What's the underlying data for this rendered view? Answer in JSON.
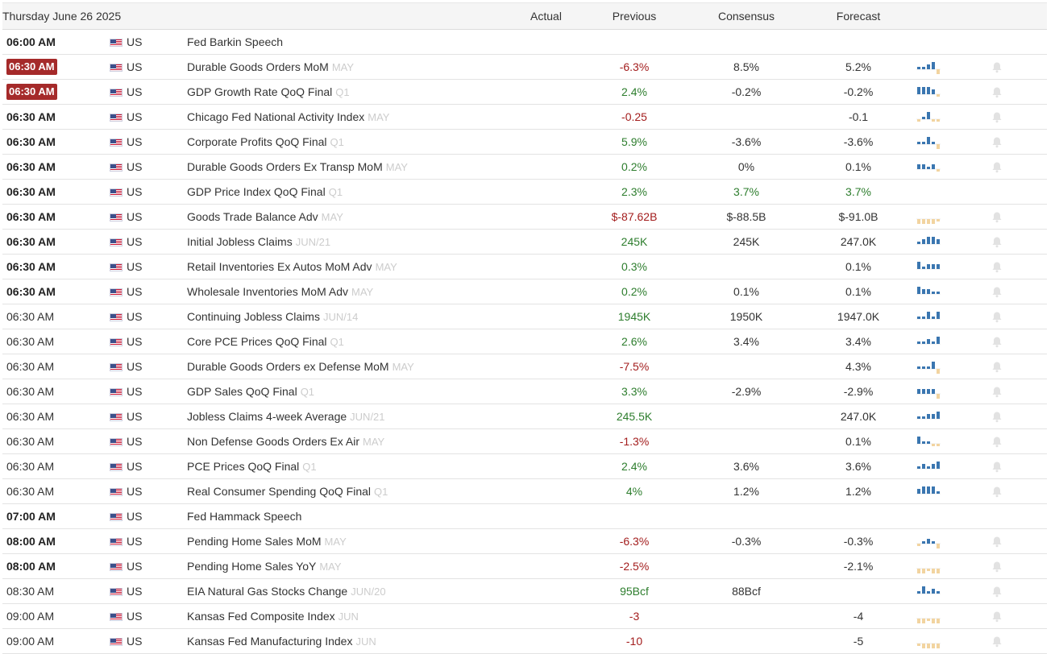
{
  "header": {
    "date": "Thursday June 26 2025",
    "col_actual": "Actual",
    "col_previous": "Previous",
    "col_consensus": "Consensus",
    "col_forecast": "Forecast"
  },
  "colors": {
    "positive": "#2d7d2d",
    "negative": "#a31d1d",
    "badge": "#a52a2a",
    "bar_blue": "#3a76b0",
    "bar_tan": "#f2d4a0"
  },
  "events": [
    {
      "time": "06:00 AM",
      "style": "bold",
      "country": "US",
      "name": "Fed Barkin Speech",
      "ref": "",
      "actual": "",
      "previous": "",
      "previous_tone": "neu",
      "consensus": "",
      "consensus_tone": "neu",
      "forecast": "",
      "forecast_tone": "neu",
      "chart": null,
      "bell": false
    },
    {
      "time": "06:30 AM",
      "style": "badge",
      "country": "US",
      "name": "Durable Goods Orders MoM",
      "ref": "MAY",
      "actual": "",
      "previous": "-6.3%",
      "previous_tone": "neg",
      "consensus": "8.5%",
      "consensus_tone": "neu",
      "forecast": "5.2%",
      "forecast_tone": "neu",
      "chart": {
        "values": [
          1,
          1,
          2,
          3,
          -2
        ],
        "tone": "blue"
      },
      "bell": true
    },
    {
      "time": "06:30 AM",
      "style": "badge",
      "country": "US",
      "name": "GDP Growth Rate QoQ Final",
      "ref": "Q1",
      "actual": "",
      "previous": "2.4%",
      "previous_tone": "pos",
      "consensus": "-0.2%",
      "consensus_tone": "neu",
      "forecast": "-0.2%",
      "forecast_tone": "neu",
      "chart": {
        "values": [
          3,
          3,
          3,
          2,
          -1
        ],
        "tone": "blue"
      },
      "bell": true
    },
    {
      "time": "06:30 AM",
      "style": "bold",
      "country": "US",
      "name": "Chicago Fed National Activity Index",
      "ref": "MAY",
      "actual": "",
      "previous": "-0.25",
      "previous_tone": "neg",
      "consensus": "",
      "consensus_tone": "neu",
      "forecast": "-0.1",
      "forecast_tone": "neu",
      "chart": {
        "values": [
          -1,
          1,
          3,
          -1,
          -1
        ],
        "tone": "blue"
      },
      "bell": true
    },
    {
      "time": "06:30 AM",
      "style": "bold",
      "country": "US",
      "name": "Corporate Profits QoQ Final",
      "ref": "Q1",
      "actual": "",
      "previous": "5.9%",
      "previous_tone": "pos",
      "consensus": "-3.6%",
      "consensus_tone": "neu",
      "forecast": "-3.6%",
      "forecast_tone": "neu",
      "chart": {
        "values": [
          1,
          1,
          3,
          1,
          -2
        ],
        "tone": "blue"
      },
      "bell": true
    },
    {
      "time": "06:30 AM",
      "style": "bold",
      "country": "US",
      "name": "Durable Goods Orders Ex Transp MoM",
      "ref": "MAY",
      "actual": "",
      "previous": "0.2%",
      "previous_tone": "pos",
      "consensus": "0%",
      "consensus_tone": "neu",
      "forecast": "0.1%",
      "forecast_tone": "neu",
      "chart": {
        "values": [
          2,
          2,
          1,
          2,
          -1
        ],
        "tone": "blue"
      },
      "bell": true
    },
    {
      "time": "06:30 AM",
      "style": "bold",
      "country": "US",
      "name": "GDP Price Index QoQ Final",
      "ref": "Q1",
      "actual": "",
      "previous": "2.3%",
      "previous_tone": "pos",
      "consensus": "3.7%",
      "consensus_tone": "pos",
      "forecast": "3.7%",
      "forecast_tone": "pos",
      "chart": null,
      "bell": false
    },
    {
      "time": "06:30 AM",
      "style": "bold",
      "country": "US",
      "name": "Goods Trade Balance Adv",
      "ref": "MAY",
      "actual": "",
      "previous": "$-87.62B",
      "previous_tone": "neg",
      "consensus": "$-88.5B",
      "consensus_tone": "neu",
      "forecast": "$-91.0B",
      "forecast_tone": "neu",
      "chart": {
        "values": [
          -3,
          -3,
          -3,
          -2,
          -1
        ],
        "tone": "tan"
      },
      "bell": true
    },
    {
      "time": "06:30 AM",
      "style": "bold",
      "country": "US",
      "name": "Initial Jobless Claims",
      "ref": "JUN/21",
      "actual": "",
      "previous": "245K",
      "previous_tone": "pos",
      "consensus": "245K",
      "consensus_tone": "neu",
      "forecast": "247.0K",
      "forecast_tone": "neu",
      "chart": {
        "values": [
          1,
          2,
          3,
          3,
          2
        ],
        "tone": "blue"
      },
      "bell": true
    },
    {
      "time": "06:30 AM",
      "style": "bold",
      "country": "US",
      "name": "Retail Inventories Ex Autos MoM Adv",
      "ref": "MAY",
      "actual": "",
      "previous": "0.3%",
      "previous_tone": "pos",
      "consensus": "",
      "consensus_tone": "neu",
      "forecast": "0.1%",
      "forecast_tone": "neu",
      "chart": {
        "values": [
          3,
          1,
          2,
          2,
          2
        ],
        "tone": "blue"
      },
      "bell": true
    },
    {
      "time": "06:30 AM",
      "style": "bold",
      "country": "US",
      "name": "Wholesale Inventories MoM Adv",
      "ref": "MAY",
      "actual": "",
      "previous": "0.2%",
      "previous_tone": "pos",
      "consensus": "0.1%",
      "consensus_tone": "neu",
      "forecast": "0.1%",
      "forecast_tone": "neu",
      "chart": {
        "values": [
          3,
          2,
          2,
          1,
          1
        ],
        "tone": "blue"
      },
      "bell": true
    },
    {
      "time": "06:30 AM",
      "style": "normal",
      "country": "US",
      "name": "Continuing Jobless Claims",
      "ref": "JUN/14",
      "actual": "",
      "previous": "1945K",
      "previous_tone": "pos",
      "consensus": "1950K",
      "consensus_tone": "neu",
      "forecast": "1947.0K",
      "forecast_tone": "neu",
      "chart": {
        "values": [
          1,
          1,
          3,
          1,
          3
        ],
        "tone": "blue"
      },
      "bell": true
    },
    {
      "time": "06:30 AM",
      "style": "normal",
      "country": "US",
      "name": "Core PCE Prices QoQ Final",
      "ref": "Q1",
      "actual": "",
      "previous": "2.6%",
      "previous_tone": "pos",
      "consensus": "3.4%",
      "consensus_tone": "neu",
      "forecast": "3.4%",
      "forecast_tone": "neu",
      "chart": {
        "values": [
          1,
          1,
          2,
          1,
          3
        ],
        "tone": "blue"
      },
      "bell": true
    },
    {
      "time": "06:30 AM",
      "style": "normal",
      "country": "US",
      "name": "Durable Goods Orders ex Defense MoM",
      "ref": "MAY",
      "actual": "",
      "previous": "-7.5%",
      "previous_tone": "neg",
      "consensus": "",
      "consensus_tone": "neu",
      "forecast": "4.3%",
      "forecast_tone": "neu",
      "chart": {
        "values": [
          1,
          1,
          1,
          3,
          -3
        ],
        "tone": "blue"
      },
      "bell": true
    },
    {
      "time": "06:30 AM",
      "style": "normal",
      "country": "US",
      "name": "GDP Sales QoQ Final",
      "ref": "Q1",
      "actual": "",
      "previous": "3.3%",
      "previous_tone": "pos",
      "consensus": "-2.9%",
      "consensus_tone": "neu",
      "forecast": "-2.9%",
      "forecast_tone": "neu",
      "chart": {
        "values": [
          2,
          2,
          2,
          2,
          -2
        ],
        "tone": "blue"
      },
      "bell": true
    },
    {
      "time": "06:30 AM",
      "style": "normal",
      "country": "US",
      "name": "Jobless Claims 4-week Average",
      "ref": "JUN/21",
      "actual": "",
      "previous": "245.5K",
      "previous_tone": "pos",
      "consensus": "",
      "consensus_tone": "neu",
      "forecast": "247.0K",
      "forecast_tone": "neu",
      "chart": {
        "values": [
          1,
          1,
          2,
          2,
          3
        ],
        "tone": "blue"
      },
      "bell": true
    },
    {
      "time": "06:30 AM",
      "style": "normal",
      "country": "US",
      "name": "Non Defense Goods Orders Ex Air",
      "ref": "MAY",
      "actual": "",
      "previous": "-1.3%",
      "previous_tone": "neg",
      "consensus": "",
      "consensus_tone": "neu",
      "forecast": "0.1%",
      "forecast_tone": "neu",
      "chart": {
        "values": [
          3,
          1,
          1,
          -1,
          -1
        ],
        "tone": "blue"
      },
      "bell": true
    },
    {
      "time": "06:30 AM",
      "style": "normal",
      "country": "US",
      "name": "PCE Prices QoQ Final",
      "ref": "Q1",
      "actual": "",
      "previous": "2.4%",
      "previous_tone": "pos",
      "consensus": "3.6%",
      "consensus_tone": "neu",
      "forecast": "3.6%",
      "forecast_tone": "neu",
      "chart": {
        "values": [
          1,
          2,
          1,
          2,
          3
        ],
        "tone": "blue"
      },
      "bell": true
    },
    {
      "time": "06:30 AM",
      "style": "normal",
      "country": "US",
      "name": "Real Consumer Spending QoQ Final",
      "ref": "Q1",
      "actual": "",
      "previous": "4%",
      "previous_tone": "pos",
      "consensus": "1.2%",
      "consensus_tone": "neu",
      "forecast": "1.2%",
      "forecast_tone": "neu",
      "chart": {
        "values": [
          2,
          3,
          3,
          3,
          1
        ],
        "tone": "blue"
      },
      "bell": true
    },
    {
      "time": "07:00 AM",
      "style": "bold",
      "country": "US",
      "name": "Fed Hammack Speech",
      "ref": "",
      "actual": "",
      "previous": "",
      "previous_tone": "neu",
      "consensus": "",
      "consensus_tone": "neu",
      "forecast": "",
      "forecast_tone": "neu",
      "chart": null,
      "bell": false
    },
    {
      "time": "08:00 AM",
      "style": "bold",
      "country": "US",
      "name": "Pending Home Sales MoM",
      "ref": "MAY",
      "actual": "",
      "previous": "-6.3%",
      "previous_tone": "neg",
      "consensus": "-0.3%",
      "consensus_tone": "neu",
      "forecast": "-0.3%",
      "forecast_tone": "neu",
      "chart": {
        "values": [
          -1,
          1,
          2,
          1,
          -2
        ],
        "tone": "blue"
      },
      "bell": true
    },
    {
      "time": "08:00 AM",
      "style": "bold",
      "country": "US",
      "name": "Pending Home Sales YoY",
      "ref": "MAY",
      "actual": "",
      "previous": "-2.5%",
      "previous_tone": "neg",
      "consensus": "",
      "consensus_tone": "neu",
      "forecast": "-2.1%",
      "forecast_tone": "neu",
      "chart": {
        "values": [
          -3,
          -2,
          -1,
          -2,
          -2
        ],
        "tone": "tan"
      },
      "bell": true
    },
    {
      "time": "08:30 AM",
      "style": "normal",
      "country": "US",
      "name": "EIA Natural Gas Stocks Change",
      "ref": "JUN/20",
      "actual": "",
      "previous": "95Bcf",
      "previous_tone": "pos",
      "consensus": "88Bcf",
      "consensus_tone": "neu",
      "forecast": "",
      "forecast_tone": "neu",
      "chart": {
        "values": [
          1,
          3,
          1,
          2,
          1
        ],
        "tone": "blue"
      },
      "bell": true
    },
    {
      "time": "09:00 AM",
      "style": "normal",
      "country": "US",
      "name": "Kansas Fed Composite Index",
      "ref": "JUN",
      "actual": "",
      "previous": "-3",
      "previous_tone": "neg",
      "consensus": "",
      "consensus_tone": "neu",
      "forecast": "-4",
      "forecast_tone": "neu",
      "chart": {
        "values": [
          -3,
          -2,
          -1,
          -2,
          -2
        ],
        "tone": "tan"
      },
      "bell": true
    },
    {
      "time": "09:00 AM",
      "style": "normal",
      "country": "US",
      "name": "Kansas Fed Manufacturing Index",
      "ref": "JUN",
      "actual": "",
      "previous": "-10",
      "previous_tone": "neg",
      "consensus": "",
      "consensus_tone": "neu",
      "forecast": "-5",
      "forecast_tone": "neu",
      "chart": {
        "values": [
          -1,
          -3,
          -2,
          -2,
          -3
        ],
        "tone": "tan"
      },
      "bell": true
    }
  ]
}
